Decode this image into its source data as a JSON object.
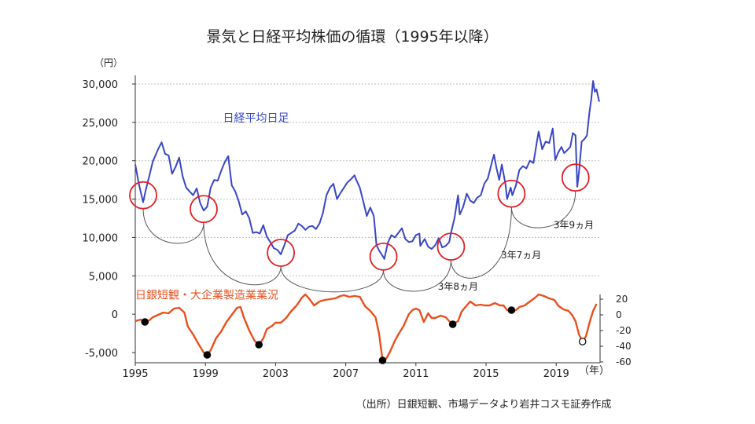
{
  "title": "景気と日経平均株価の循環（1995年以降）",
  "source": "（出所）日銀短観、市場データより岩井コスモ証券作成",
  "colors": {
    "nikkei": "#3a46c4",
    "tankan": "#e8501e",
    "circle": "#e01f26",
    "grid": "#bdbdbd",
    "axis": "#333333"
  },
  "chart_data": {
    "type": "line",
    "left_axis": {
      "unit_label": "（円）",
      "range": [
        -5000,
        30000
      ],
      "ticks": [
        "30,000",
        "25,000",
        "20,000",
        "15,000",
        "10,000",
        "5,000",
        "0",
        "-5,000"
      ],
      "tick_values": [
        30000,
        25000,
        20000,
        15000,
        10000,
        5000,
        0,
        -5000
      ],
      "grid": true
    },
    "right_axis": {
      "range": [
        -60,
        20
      ],
      "ticks": [
        "20",
        "0",
        "-20",
        "-40",
        "-60"
      ],
      "tick_values": [
        20,
        0,
        -20,
        -40,
        -60
      ]
    },
    "x_axis": {
      "unit_label": "（年）",
      "range": [
        1995,
        2021.5
      ],
      "ticks": [
        "1995",
        "1999",
        "2003",
        "2007",
        "2011",
        "2015",
        "2019"
      ],
      "tick_values": [
        1995,
        1999,
        2003,
        2007,
        2011,
        2015,
        2019
      ]
    },
    "series": [
      {
        "name": "日経平均日足",
        "axis": "left",
        "points": [
          [
            1995.0,
            19500
          ],
          [
            1995.2,
            17000
          ],
          [
            1995.45,
            14600
          ],
          [
            1995.6,
            16200
          ],
          [
            1995.8,
            18000
          ],
          [
            1996.0,
            19900
          ],
          [
            1996.3,
            21500
          ],
          [
            1996.5,
            22400
          ],
          [
            1996.7,
            20900
          ],
          [
            1996.9,
            20700
          ],
          [
            1997.1,
            18300
          ],
          [
            1997.3,
            19200
          ],
          [
            1997.5,
            20400
          ],
          [
            1997.7,
            18000
          ],
          [
            1997.9,
            16500
          ],
          [
            1998.1,
            16000
          ],
          [
            1998.3,
            15500
          ],
          [
            1998.5,
            16400
          ],
          [
            1998.7,
            14500
          ],
          [
            1998.9,
            13500
          ],
          [
            1999.1,
            14000
          ],
          [
            1999.3,
            16500
          ],
          [
            1999.5,
            17500
          ],
          [
            1999.7,
            17400
          ],
          [
            1999.9,
            18700
          ],
          [
            2000.1,
            19800
          ],
          [
            2000.3,
            20600
          ],
          [
            2000.5,
            16800
          ],
          [
            2000.7,
            16000
          ],
          [
            2000.9,
            14700
          ],
          [
            2001.1,
            13000
          ],
          [
            2001.3,
            13400
          ],
          [
            2001.5,
            12500
          ],
          [
            2001.7,
            10600
          ],
          [
            2001.9,
            10700
          ],
          [
            2002.1,
            10500
          ],
          [
            2002.3,
            11600
          ],
          [
            2002.5,
            10100
          ],
          [
            2002.7,
            9400
          ],
          [
            2002.9,
            8600
          ],
          [
            2003.1,
            8400
          ],
          [
            2003.3,
            7800
          ],
          [
            2003.5,
            9000
          ],
          [
            2003.7,
            10300
          ],
          [
            2003.9,
            10600
          ],
          [
            2004.1,
            10900
          ],
          [
            2004.3,
            11800
          ],
          [
            2004.5,
            11500
          ],
          [
            2004.7,
            11000
          ],
          [
            2004.9,
            11400
          ],
          [
            2005.1,
            11500
          ],
          [
            2005.3,
            11100
          ],
          [
            2005.5,
            11800
          ],
          [
            2005.7,
            13200
          ],
          [
            2005.9,
            15500
          ],
          [
            2006.1,
            16500
          ],
          [
            2006.3,
            17000
          ],
          [
            2006.5,
            15000
          ],
          [
            2006.7,
            15800
          ],
          [
            2006.9,
            16500
          ],
          [
            2007.1,
            17200
          ],
          [
            2007.3,
            17600
          ],
          [
            2007.5,
            18100
          ],
          [
            2007.6,
            17500
          ],
          [
            2007.8,
            16500
          ],
          [
            2008.0,
            14700
          ],
          [
            2008.2,
            12800
          ],
          [
            2008.4,
            13900
          ],
          [
            2008.6,
            12800
          ],
          [
            2008.75,
            9000
          ],
          [
            2008.9,
            8300
          ],
          [
            2009.1,
            7600
          ],
          [
            2009.2,
            7200
          ],
          [
            2009.4,
            9300
          ],
          [
            2009.6,
            10300
          ],
          [
            2009.8,
            10000
          ],
          [
            2010.0,
            10600
          ],
          [
            2010.2,
            11200
          ],
          [
            2010.4,
            9800
          ],
          [
            2010.6,
            9400
          ],
          [
            2010.8,
            9500
          ],
          [
            2011.0,
            10300
          ],
          [
            2011.2,
            10500
          ],
          [
            2011.25,
            8900
          ],
          [
            2011.5,
            9800
          ],
          [
            2011.7,
            8800
          ],
          [
            2011.9,
            8500
          ],
          [
            2012.1,
            9000
          ],
          [
            2012.3,
            9900
          ],
          [
            2012.5,
            8700
          ],
          [
            2012.7,
            8900
          ],
          [
            2012.9,
            9400
          ],
          [
            2013.0,
            10600
          ],
          [
            2013.2,
            12500
          ],
          [
            2013.4,
            15500
          ],
          [
            2013.5,
            13000
          ],
          [
            2013.7,
            14000
          ],
          [
            2013.9,
            15700
          ],
          [
            2014.1,
            14800
          ],
          [
            2014.3,
            14500
          ],
          [
            2014.5,
            15200
          ],
          [
            2014.7,
            15500
          ],
          [
            2014.9,
            17000
          ],
          [
            2015.1,
            17700
          ],
          [
            2015.3,
            19500
          ],
          [
            2015.45,
            20800
          ],
          [
            2015.6,
            19000
          ],
          [
            2015.75,
            17500
          ],
          [
            2015.9,
            19500
          ],
          [
            2016.1,
            17000
          ],
          [
            2016.2,
            15000
          ],
          [
            2016.4,
            16500
          ],
          [
            2016.5,
            15500
          ],
          [
            2016.7,
            16800
          ],
          [
            2016.9,
            18800
          ],
          [
            2017.1,
            19300
          ],
          [
            2017.3,
            19000
          ],
          [
            2017.5,
            20000
          ],
          [
            2017.7,
            19700
          ],
          [
            2017.9,
            22500
          ],
          [
            2018.0,
            23800
          ],
          [
            2018.2,
            21500
          ],
          [
            2018.4,
            22500
          ],
          [
            2018.6,
            22300
          ],
          [
            2018.8,
            24200
          ],
          [
            2018.95,
            20100
          ],
          [
            2019.1,
            21000
          ],
          [
            2019.3,
            21800
          ],
          [
            2019.45,
            21000
          ],
          [
            2019.6,
            21300
          ],
          [
            2019.8,
            21800
          ],
          [
            2019.95,
            23600
          ],
          [
            2020.1,
            23300
          ],
          [
            2020.2,
            16600
          ],
          [
            2020.3,
            18500
          ],
          [
            2020.45,
            22500
          ],
          [
            2020.6,
            22800
          ],
          [
            2020.75,
            23300
          ],
          [
            2020.9,
            26400
          ],
          [
            2021.0,
            28000
          ],
          [
            2021.1,
            30400
          ],
          [
            2021.2,
            29000
          ],
          [
            2021.3,
            29300
          ],
          [
            2021.45,
            27700
          ]
        ]
      },
      {
        "name": "日銀短観・大企業製造業業況",
        "axis": "right",
        "points": [
          [
            1995.0,
            -8
          ],
          [
            1995.3,
            -6
          ],
          [
            1995.55,
            -9
          ],
          [
            1995.8,
            -7
          ],
          [
            1996.0,
            -3
          ],
          [
            1996.3,
            0
          ],
          [
            1996.6,
            3
          ],
          [
            1996.9,
            2
          ],
          [
            1997.2,
            8
          ],
          [
            1997.5,
            9
          ],
          [
            1997.8,
            3
          ],
          [
            1998.0,
            -15
          ],
          [
            1998.3,
            -25
          ],
          [
            1998.6,
            -37
          ],
          [
            1998.9,
            -48
          ],
          [
            1999.1,
            -51
          ],
          [
            1999.3,
            -45
          ],
          [
            1999.6,
            -30
          ],
          [
            1999.9,
            -21
          ],
          [
            2000.2,
            -9
          ],
          [
            2000.5,
            0
          ],
          [
            2000.8,
            9
          ],
          [
            2001.0,
            10
          ],
          [
            2001.2,
            -4
          ],
          [
            2001.5,
            -20
          ],
          [
            2001.8,
            -33
          ],
          [
            2002.05,
            -38
          ],
          [
            2002.3,
            -30
          ],
          [
            2002.5,
            -18
          ],
          [
            2002.8,
            -14
          ],
          [
            2003.0,
            -10
          ],
          [
            2003.3,
            -10
          ],
          [
            2003.6,
            -4
          ],
          [
            2003.9,
            5
          ],
          [
            2004.2,
            12
          ],
          [
            2004.5,
            22
          ],
          [
            2004.7,
            26
          ],
          [
            2004.9,
            21
          ],
          [
            2005.2,
            12
          ],
          [
            2005.5,
            17
          ],
          [
            2005.8,
            19
          ],
          [
            2006.1,
            20
          ],
          [
            2006.4,
            21
          ],
          [
            2006.7,
            24
          ],
          [
            2006.9,
            25
          ],
          [
            2007.2,
            23
          ],
          [
            2007.5,
            24
          ],
          [
            2007.8,
            23
          ],
          [
            2008.1,
            11
          ],
          [
            2008.4,
            5
          ],
          [
            2008.7,
            -3
          ],
          [
            2008.9,
            -24
          ],
          [
            2009.1,
            -58
          ],
          [
            2009.3,
            -56
          ],
          [
            2009.5,
            -48
          ],
          [
            2009.8,
            -33
          ],
          [
            2010.0,
            -25
          ],
          [
            2010.3,
            -14
          ],
          [
            2010.6,
            1
          ],
          [
            2010.8,
            6
          ],
          [
            2011.0,
            8
          ],
          [
            2011.2,
            6
          ],
          [
            2011.45,
            -9
          ],
          [
            2011.7,
            2
          ],
          [
            2011.9,
            -4
          ],
          [
            2012.1,
            -4
          ],
          [
            2012.4,
            -1
          ],
          [
            2012.7,
            -3
          ],
          [
            2012.9,
            -8
          ],
          [
            2013.1,
            -12
          ],
          [
            2013.4,
            -8
          ],
          [
            2013.6,
            4
          ],
          [
            2013.9,
            12
          ],
          [
            2014.1,
            17
          ],
          [
            2014.4,
            12
          ],
          [
            2014.7,
            13
          ],
          [
            2014.9,
            12
          ],
          [
            2015.2,
            12
          ],
          [
            2015.5,
            15
          ],
          [
            2015.8,
            12
          ],
          [
            2016.0,
            12
          ],
          [
            2016.2,
            6
          ],
          [
            2016.45,
            6
          ],
          [
            2016.7,
            6
          ],
          [
            2016.9,
            10
          ],
          [
            2017.2,
            12
          ],
          [
            2017.5,
            17
          ],
          [
            2017.8,
            22
          ],
          [
            2018.0,
            26
          ],
          [
            2018.3,
            24
          ],
          [
            2018.6,
            21
          ],
          [
            2018.9,
            19
          ],
          [
            2019.1,
            12
          ],
          [
            2019.4,
            7
          ],
          [
            2019.7,
            5
          ],
          [
            2019.9,
            0
          ],
          [
            2020.1,
            -8
          ],
          [
            2020.3,
            -25
          ],
          [
            2020.5,
            -34
          ],
          [
            2020.7,
            -27
          ],
          [
            2020.9,
            -10
          ],
          [
            2021.1,
            5
          ],
          [
            2021.3,
            14
          ]
        ]
      }
    ],
    "trough_markers": [
      {
        "x": 1995.55,
        "y": -9,
        "filled": true
      },
      {
        "x": 1999.1,
        "y": -51,
        "filled": true
      },
      {
        "x": 2002.05,
        "y": -38,
        "filled": true
      },
      {
        "x": 2009.1,
        "y": -58,
        "filled": true
      },
      {
        "x": 2013.1,
        "y": -12,
        "filled": true
      },
      {
        "x": 2016.45,
        "y": 6,
        "filled": true
      },
      {
        "x": 2020.5,
        "y": -34,
        "filled": false
      }
    ],
    "circles": [
      {
        "x": 1995.45,
        "y": 15500,
        "dashed": false
      },
      {
        "x": 1998.9,
        "y": 13700,
        "dashed": false
      },
      {
        "x": 2003.3,
        "y": 8000,
        "dashed": false
      },
      {
        "x": 2009.15,
        "y": 7500,
        "dashed": false
      },
      {
        "x": 2013.0,
        "y": 8800,
        "dashed": false
      },
      {
        "x": 2016.45,
        "y": 15700,
        "dashed": false
      },
      {
        "x": 2020.1,
        "y": 17800,
        "dashed": false
      }
    ],
    "annotations": [
      {
        "text": "3年9ヵ月",
        "x": 2020.0,
        "y": 11200
      },
      {
        "text": "3年7ヵ月",
        "x": 2017.0,
        "y": 7300
      },
      {
        "text": "3年8ヵ月",
        "x": 2013.4,
        "y": 3200
      }
    ],
    "series_labels": [
      {
        "text": "日経平均日足",
        "x": 2000.0,
        "y": 25500
      },
      {
        "text": "日銀短観・大企業製造業業況",
        "x": 1995.0,
        "y": 2400
      }
    ]
  }
}
